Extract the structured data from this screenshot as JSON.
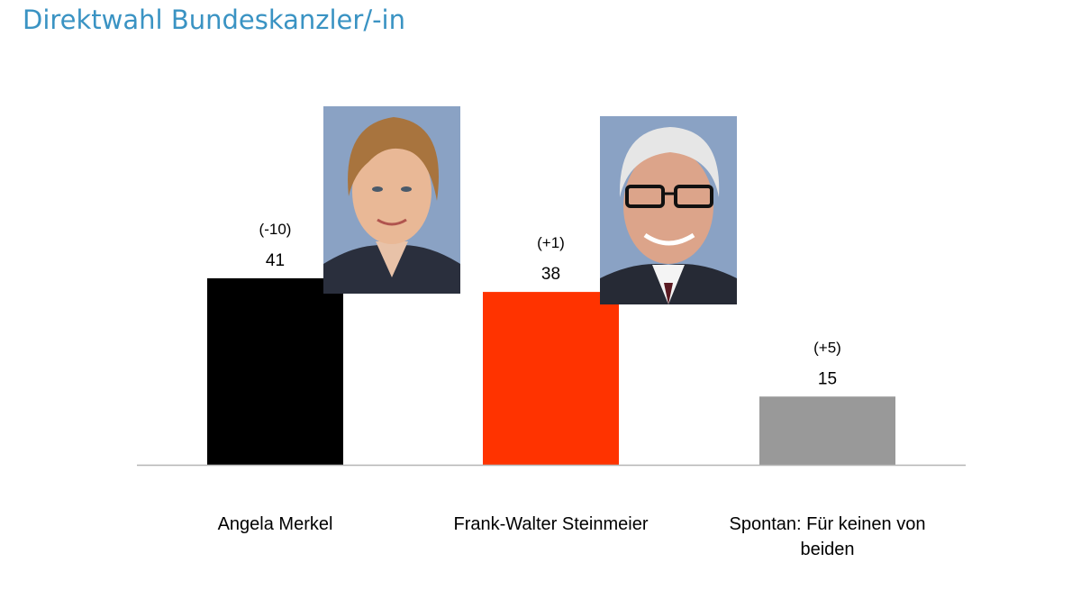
{
  "title": "Direktwahl Bundeskanzler/-in",
  "chart_data": {
    "type": "bar",
    "title": "Direktwahl Bundeskanzler/-in",
    "categories": [
      "Angela Merkel",
      "Frank-Walter Steinmeier",
      "Spontan: Für keinen von beiden"
    ],
    "values": [
      41,
      38,
      15
    ],
    "changes": [
      "(-10)",
      "(+1)",
      "(+5)"
    ],
    "colors": [
      "#000000",
      "#ff3300",
      "#999999"
    ],
    "xlabel": "",
    "ylabel": "",
    "ylim": [
      0,
      41
    ],
    "grid": false,
    "legend": "none",
    "photos": [
      "photo-angela-merkel",
      "photo-frank-walter-steinmeier"
    ]
  }
}
